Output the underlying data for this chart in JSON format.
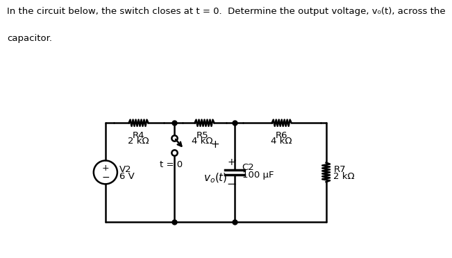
{
  "title_line1": "In the circuit below, the switch closes at t = 0.  Determine the output voltage, v₀(t), across the",
  "title_line2": "capacitor.",
  "background_color": "#ffffff",
  "text_color": "#000000",
  "line_color": "#000000",
  "R4_label": "R4",
  "R4_val": "2 kΩ",
  "R5_label": "R5",
  "R5_val": "4 kΩ",
  "R6_label": "R6",
  "R6_val": "4 kΩ",
  "R7_label": "R7",
  "R7_val": "2 kΩ",
  "C2_label": "C2",
  "C2_val": "100 μF",
  "V2_label": "V2",
  "V2_val": "6 V",
  "sw_label": "t = 0",
  "vo_label": "v_o(t)",
  "plus": "+",
  "minus": "−"
}
